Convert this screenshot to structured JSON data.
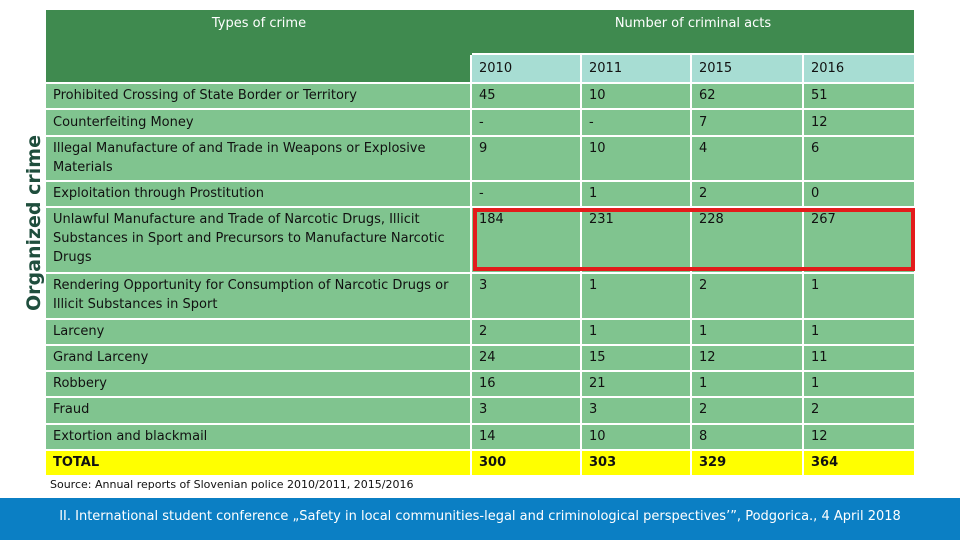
{
  "side_label": "Organized crime",
  "header": {
    "types_label": "Types of crime",
    "number_label": "Number of criminal acts",
    "years": [
      "2010",
      "2011",
      "2015",
      "2016"
    ]
  },
  "colors": {
    "header_green": "#3f8a4f",
    "row_green": "#80c48f",
    "year_cyan": "#a7ddd3",
    "total_yellow": "#ffff00",
    "highlight_red": "#e31b1b",
    "footer_blue": "#0b7fc4"
  },
  "rows": [
    {
      "label": "Prohibited Crossing of State Border or Territory",
      "values": [
        "45",
        "10",
        "62",
        "51"
      ]
    },
    {
      "label": "Counterfeiting Money",
      "values": [
        "-",
        "-",
        "7",
        "12"
      ]
    },
    {
      "label": "Illegal Manufacture of and Trade in Weapons or Explosive Materials",
      "values": [
        "9",
        "10",
        "4",
        "6"
      ]
    },
    {
      "label": "Exploitation through Prostitution",
      "values": [
        "-",
        "1",
        "2",
        "0"
      ]
    },
    {
      "label": "Unlawful Manufacture and Trade of Narcotic Drugs, Illicit Substances in Sport and Precursors to Manufacture Narcotic Drugs",
      "values": [
        "184",
        "231",
        "228",
        "267"
      ]
    },
    {
      "label": "Rendering Opportunity for Consumption of Narcotic Drugs or Illicit Substances in Sport",
      "values": [
        "3",
        "1",
        "2",
        "1"
      ]
    },
    {
      "label": "Larceny",
      "values": [
        "2",
        "1",
        "1",
        "1"
      ]
    },
    {
      "label": "Grand Larceny",
      "values": [
        "24",
        "15",
        "12",
        "11"
      ]
    },
    {
      "label": "Robbery",
      "values": [
        "16",
        "21",
        "1",
        "1"
      ]
    },
    {
      "label": "Fraud",
      "values": [
        "3",
        "3",
        "2",
        "2"
      ]
    },
    {
      "label": "Extortion and blackmail",
      "values": [
        "14",
        "10",
        "8",
        "12"
      ]
    },
    {
      "label": "TOTAL",
      "values": [
        "300",
        "303",
        "329",
        "364"
      ]
    }
  ],
  "source": "Source: Annual reports of Slovenian police 2010/2011, 2015/2016",
  "footer": "II. International student conference „Safety in local communities-legal and criminological perspectives’”, Podgorica., 4 April 2018"
}
